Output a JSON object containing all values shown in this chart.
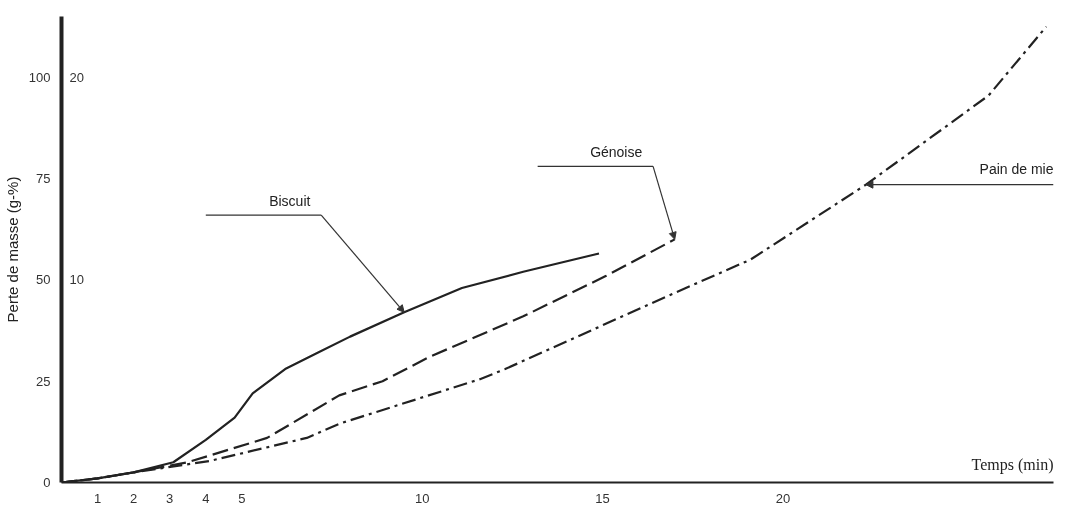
{
  "chart_data": {
    "type": "line",
    "xlabel": "Temps (min)",
    "ylabel": "Perte de masse (g-%)",
    "xlim": [
      0,
      27.5
    ],
    "xticks": [
      1,
      2,
      3,
      4,
      5,
      10,
      15,
      20
    ],
    "ylim": [
      0,
      115
    ],
    "yticks": [
      0,
      25,
      50,
      75,
      100
    ],
    "y2lim": [
      0,
      23
    ],
    "y2ticks": [
      10,
      20
    ],
    "grid": false,
    "marker": "none",
    "series": [
      {
        "name": "Biscuit",
        "color": "#222222",
        "line_style": "solid",
        "x": [
          0,
          1,
          2,
          3.1,
          4.0,
          4.8,
          5.3,
          6.2,
          7.1,
          8.0,
          9.5,
          11.1,
          12.8,
          14.9
        ],
        "values": [
          0,
          1,
          2.5,
          5,
          10.5,
          16,
          22,
          28,
          32,
          36,
          42,
          48,
          52,
          56.5
        ]
      },
      {
        "name": "Génoise",
        "color": "#222222",
        "line_style": "dashed",
        "x": [
          0,
          1,
          2,
          3.5,
          5.7,
          7.7,
          8.9,
          10.2,
          12.8,
          15.1,
          17.0
        ],
        "values": [
          0,
          1,
          2.5,
          5,
          11,
          21.5,
          25,
          31,
          41,
          51,
          60
        ]
      },
      {
        "name": "Pain de mie",
        "color": "#222222",
        "line_style": "dashdot",
        "x": [
          0,
          1,
          2,
          4.1,
          6.8,
          7.7,
          11.6,
          12.3,
          16.8,
          19.1,
          22.3,
          25.7,
          27.3
        ],
        "values": [
          0,
          1,
          2.5,
          5.3,
          11,
          14.5,
          25.5,
          28,
          46,
          55,
          73.5,
          95.5,
          112.5
        ]
      }
    ]
  }
}
